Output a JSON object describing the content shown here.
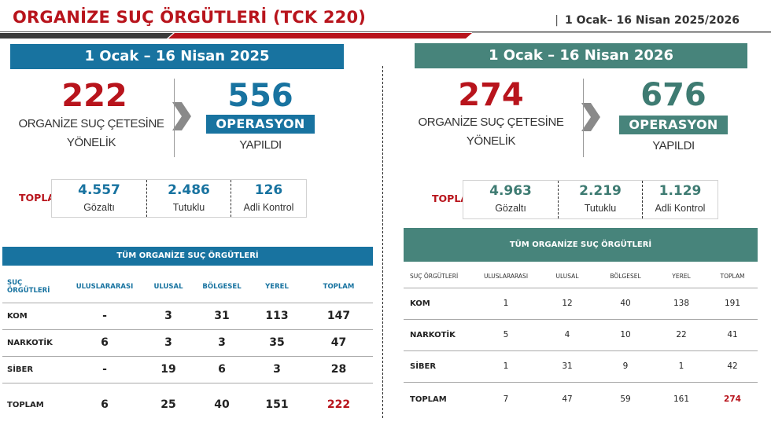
{
  "header": {
    "title": "ORGANİZE SUÇ ÖRGÜTLERİ (TCK 220)",
    "date_range": "1 Ocak– 16 Nisan 2025/2026",
    "colors": {
      "accent_red": "#b8141c",
      "stripe_dark": "#3a3a3a"
    }
  },
  "left": {
    "period": "1 Ocak – 16 Nisan 2025",
    "gang_count": "222",
    "gang_label_line1": "ORGANİZE SUÇ ÇETESİNE",
    "gang_label_line2": "YÖNELİK",
    "operation_count": "556",
    "operation_badge": "OPERASYON",
    "operation_sub": "YAPILDI",
    "totals_label": "TOPLAM",
    "totals": [
      {
        "value": "4.557",
        "label": "Gözaltı"
      },
      {
        "value": "2.486",
        "label": "Tutuklu"
      },
      {
        "value": "126",
        "label": "Adli Kontrol"
      }
    ],
    "table": {
      "title": "TÜM ORGANİZE SUÇ ÖRGÜTLERİ",
      "headers": [
        "SUÇ ÖRGÜTLERİ",
        "ULUSLARARASI",
        "ULUSAL",
        "BÖLGESEL",
        "YEREL",
        "TOPLAM"
      ],
      "rows": [
        [
          "KOM",
          "-",
          "3",
          "31",
          "113",
          "147"
        ],
        [
          "NARKOTİK",
          "6",
          "3",
          "3",
          "35",
          "47"
        ],
        [
          "SİBER",
          "-",
          "19",
          "6",
          "3",
          "28"
        ],
        [
          "TOPLAM",
          "6",
          "25",
          "40",
          "151",
          "222"
        ]
      ]
    },
    "color": "#1873a0"
  },
  "right": {
    "period": "1 Ocak – 16 Nisan 2026",
    "gang_count": "274",
    "gang_label_line1": "ORGANİZE SUÇ ÇETESİNE",
    "gang_label_line2": "YÖNELİK",
    "operation_count": "676",
    "operation_badge": "OPERASYON",
    "operation_sub": "YAPILDI",
    "totals_label": "TOPLAM",
    "totals": [
      {
        "value": "4.963",
        "label": "Gözaltı"
      },
      {
        "value": "2.219",
        "label": "Tutuklu"
      },
      {
        "value": "1.129",
        "label": "Adli Kontrol"
      }
    ],
    "table": {
      "title": "TÜM ORGANİZE SUÇ ÖRGÜTLERİ",
      "headers": [
        "SUÇ ÖRGÜTLERİ",
        "ULUSLARARASI",
        "ULUSAL",
        "BÖLGESEL",
        "YEREL",
        "TOPLAM"
      ],
      "rows": [
        [
          "KOM",
          "1",
          "12",
          "40",
          "138",
          "191"
        ],
        [
          "NARKOTİK",
          "5",
          "4",
          "10",
          "22",
          "41"
        ],
        [
          "SİBER",
          "1",
          "31",
          "9",
          "1",
          "42"
        ],
        [
          "TOPLAM",
          "7",
          "47",
          "59",
          "161",
          "274"
        ]
      ]
    },
    "color": "#47847b"
  },
  "icons": {
    "arrow": "chevron-right-icon"
  }
}
